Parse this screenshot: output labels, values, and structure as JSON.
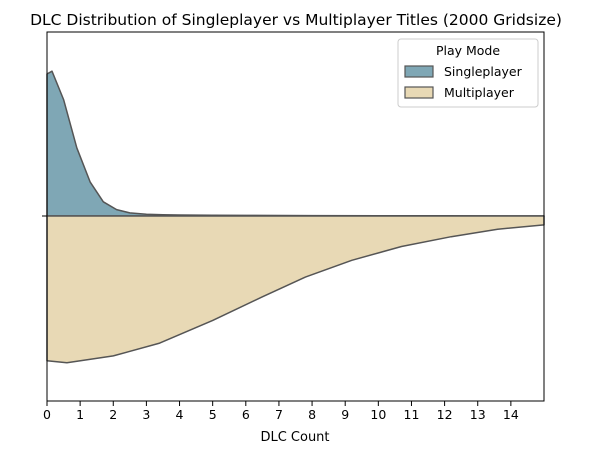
{
  "chart_data": {
    "type": "area",
    "title": "DLC Distribution of Singleplayer vs Multiplayer Titles (2000 Gridsize)",
    "xlabel": "DLC Count",
    "ylabel": "",
    "xlim": [
      0,
      15
    ],
    "xticks": [
      0,
      1,
      2,
      3,
      4,
      5,
      6,
      7,
      8,
      9,
      10,
      11,
      12,
      13,
      14
    ],
    "legend": {
      "title": "Play Mode",
      "placement": "top-right"
    },
    "series": [
      {
        "name": "Singleplayer",
        "color": "#7fa7b5",
        "direction": "up",
        "x": [
          0,
          0.15,
          0.5,
          0.9,
          1.3,
          1.7,
          2.1,
          2.5,
          3,
          3.5,
          4,
          5,
          6,
          8,
          10,
          12,
          15
        ],
        "values": [
          1.0,
          1.02,
          0.82,
          0.48,
          0.24,
          0.1,
          0.045,
          0.022,
          0.013,
          0.009,
          0.007,
          0.005,
          0.004,
          0.003,
          0.002,
          0.0015,
          0.001
        ]
      },
      {
        "name": "Multiplayer",
        "color": "#e8d9b5",
        "direction": "down",
        "x": [
          0,
          0.6,
          2,
          3.4,
          5,
          6.5,
          7.8,
          9.2,
          10.7,
          12.2,
          13.6,
          15
        ],
        "values": [
          0.735,
          0.745,
          0.71,
          0.645,
          0.53,
          0.41,
          0.31,
          0.225,
          0.155,
          0.105,
          0.067,
          0.045
        ]
      }
    ]
  }
}
